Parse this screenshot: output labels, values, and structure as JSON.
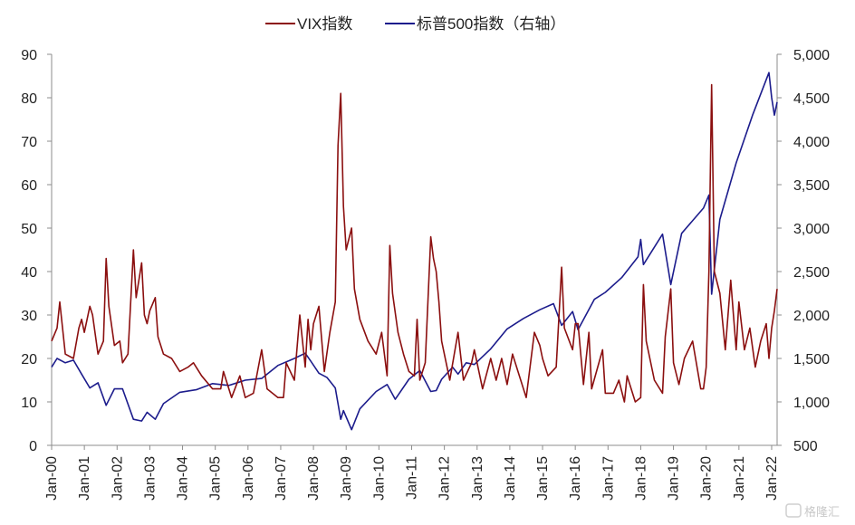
{
  "chart_data": {
    "type": "line",
    "title": "",
    "legend_position": "top-center",
    "grid": false,
    "y_left": {
      "min": 0,
      "max": 90,
      "ticks": [
        "0",
        "10",
        "20",
        "30",
        "40",
        "50",
        "60",
        "70",
        "80",
        "90"
      ]
    },
    "y_right": {
      "min": 500,
      "max": 5000,
      "ticks": [
        "500",
        "1,000",
        "1,500",
        "2,000",
        "2,500",
        "3,000",
        "3,500",
        "4,000",
        "4,500",
        "5,000"
      ]
    },
    "x": {
      "start": "2000-01",
      "end": "2022-03",
      "ticks": [
        "Jan-00",
        "Jan-01",
        "Jan-02",
        "Jan-03",
        "Jan-04",
        "Jan-05",
        "Jan-06",
        "Jan-07",
        "Jan-08",
        "Jan-09",
        "Jan-10",
        "Jan-11",
        "Jan-12",
        "Jan-13",
        "Jan-14",
        "Jan-15",
        "Jan-16",
        "Jan-17",
        "Jan-18",
        "Jan-19",
        "Jan-20",
        "Jan-21",
        "Jan-22"
      ]
    },
    "series": [
      {
        "name": "VIX指数",
        "axis": "left",
        "color": "#8b0f0f",
        "points": [
          [
            "2000-01",
            24
          ],
          [
            "2000-03",
            27
          ],
          [
            "2000-04",
            33
          ],
          [
            "2000-06",
            21
          ],
          [
            "2000-09",
            20
          ],
          [
            "2000-11",
            27
          ],
          [
            "2000-12",
            29
          ],
          [
            "2001-01",
            26
          ],
          [
            "2001-03",
            32
          ],
          [
            "2001-04",
            30
          ],
          [
            "2001-06",
            21
          ],
          [
            "2001-08",
            24
          ],
          [
            "2001-09",
            43
          ],
          [
            "2001-10",
            32
          ],
          [
            "2001-12",
            23
          ],
          [
            "2002-02",
            24
          ],
          [
            "2002-03",
            19
          ],
          [
            "2002-05",
            21
          ],
          [
            "2002-07",
            45
          ],
          [
            "2002-08",
            34
          ],
          [
            "2002-10",
            42
          ],
          [
            "2002-11",
            30
          ],
          [
            "2002-12",
            28
          ],
          [
            "2003-01",
            31
          ],
          [
            "2003-03",
            34
          ],
          [
            "2003-04",
            25
          ],
          [
            "2003-06",
            21
          ],
          [
            "2003-09",
            20
          ],
          [
            "2003-12",
            17
          ],
          [
            "2004-03",
            18
          ],
          [
            "2004-05",
            19
          ],
          [
            "2004-08",
            16
          ],
          [
            "2004-12",
            13
          ],
          [
            "2005-03",
            13
          ],
          [
            "2005-04",
            17
          ],
          [
            "2005-07",
            11
          ],
          [
            "2005-10",
            16
          ],
          [
            "2005-12",
            11
          ],
          [
            "2006-03",
            12
          ],
          [
            "2006-06",
            22
          ],
          [
            "2006-08",
            13
          ],
          [
            "2006-12",
            11
          ],
          [
            "2007-02",
            11
          ],
          [
            "2007-03",
            19
          ],
          [
            "2007-06",
            15
          ],
          [
            "2007-08",
            30
          ],
          [
            "2007-10",
            18
          ],
          [
            "2007-11",
            29
          ],
          [
            "2007-12",
            22
          ],
          [
            "2008-01",
            28
          ],
          [
            "2008-03",
            32
          ],
          [
            "2008-05",
            17
          ],
          [
            "2008-07",
            26
          ],
          [
            "2008-09",
            33
          ],
          [
            "2008-10",
            69
          ],
          [
            "2008-11",
            81
          ],
          [
            "2008-12",
            55
          ],
          [
            "2009-01",
            45
          ],
          [
            "2009-03",
            50
          ],
          [
            "2009-04",
            36
          ],
          [
            "2009-06",
            29
          ],
          [
            "2009-09",
            24
          ],
          [
            "2009-12",
            21
          ],
          [
            "2010-02",
            26
          ],
          [
            "2010-04",
            16
          ],
          [
            "2010-05",
            46
          ],
          [
            "2010-06",
            35
          ],
          [
            "2010-08",
            26
          ],
          [
            "2010-10",
            21
          ],
          [
            "2010-12",
            17
          ],
          [
            "2011-02",
            16
          ],
          [
            "2011-03",
            29
          ],
          [
            "2011-04",
            15
          ],
          [
            "2011-06",
            19
          ],
          [
            "2011-08",
            48
          ],
          [
            "2011-09",
            43
          ],
          [
            "2011-10",
            40
          ],
          [
            "2011-11",
            33
          ],
          [
            "2011-12",
            24
          ],
          [
            "2012-02",
            18
          ],
          [
            "2012-03",
            15
          ],
          [
            "2012-06",
            26
          ],
          [
            "2012-08",
            15
          ],
          [
            "2012-11",
            19
          ],
          [
            "2012-12",
            22
          ],
          [
            "2013-03",
            13
          ],
          [
            "2013-06",
            20
          ],
          [
            "2013-08",
            15
          ],
          [
            "2013-10",
            20
          ],
          [
            "2013-12",
            14
          ],
          [
            "2014-02",
            21
          ],
          [
            "2014-04",
            17
          ],
          [
            "2014-07",
            11
          ],
          [
            "2014-10",
            26
          ],
          [
            "2014-12",
            23
          ],
          [
            "2015-01",
            20
          ],
          [
            "2015-03",
            16
          ],
          [
            "2015-06",
            18
          ],
          [
            "2015-08",
            41
          ],
          [
            "2015-09",
            27
          ],
          [
            "2015-12",
            22
          ],
          [
            "2016-01",
            28
          ],
          [
            "2016-02",
            28
          ],
          [
            "2016-04",
            14
          ],
          [
            "2016-06",
            26
          ],
          [
            "2016-07",
            13
          ],
          [
            "2016-11",
            22
          ],
          [
            "2016-12",
            12
          ],
          [
            "2017-03",
            12
          ],
          [
            "2017-05",
            15
          ],
          [
            "2017-07",
            10
          ],
          [
            "2017-08",
            16
          ],
          [
            "2017-11",
            10
          ],
          [
            "2018-01",
            11
          ],
          [
            "2018-02",
            37
          ],
          [
            "2018-03",
            24
          ],
          [
            "2018-06",
            15
          ],
          [
            "2018-09",
            12
          ],
          [
            "2018-10",
            25
          ],
          [
            "2018-12",
            36
          ],
          [
            "2019-01",
            19
          ],
          [
            "2019-03",
            14
          ],
          [
            "2019-05",
            20
          ],
          [
            "2019-08",
            24
          ],
          [
            "2019-11",
            13
          ],
          [
            "2019-12",
            13
          ],
          [
            "2020-01",
            18
          ],
          [
            "2020-02",
            40
          ],
          [
            "2020-03",
            83
          ],
          [
            "2020-04",
            40
          ],
          [
            "2020-06",
            35
          ],
          [
            "2020-08",
            22
          ],
          [
            "2020-10",
            38
          ],
          [
            "2020-12",
            22
          ],
          [
            "2021-01",
            33
          ],
          [
            "2021-03",
            22
          ],
          [
            "2021-05",
            27
          ],
          [
            "2021-07",
            18
          ],
          [
            "2021-09",
            24
          ],
          [
            "2021-11",
            28
          ],
          [
            "2021-12",
            20
          ],
          [
            "2022-01",
            27
          ],
          [
            "2022-02",
            31
          ],
          [
            "2022-03",
            36
          ]
        ]
      },
      {
        "name": "标普500指数（右轴）",
        "axis": "right",
        "color": "#1c1c8c",
        "points": [
          [
            "2000-01",
            1400
          ],
          [
            "2000-03",
            1500
          ],
          [
            "2000-06",
            1450
          ],
          [
            "2000-09",
            1480
          ],
          [
            "2000-12",
            1320
          ],
          [
            "2001-03",
            1160
          ],
          [
            "2001-06",
            1220
          ],
          [
            "2001-09",
            960
          ],
          [
            "2001-12",
            1150
          ],
          [
            "2002-03",
            1150
          ],
          [
            "2002-07",
            800
          ],
          [
            "2002-10",
            780
          ],
          [
            "2002-12",
            880
          ],
          [
            "2003-03",
            800
          ],
          [
            "2003-06",
            980
          ],
          [
            "2003-12",
            1110
          ],
          [
            "2004-06",
            1140
          ],
          [
            "2004-12",
            1210
          ],
          [
            "2005-06",
            1190
          ],
          [
            "2005-12",
            1250
          ],
          [
            "2006-06",
            1270
          ],
          [
            "2006-12",
            1420
          ],
          [
            "2007-06",
            1500
          ],
          [
            "2007-10",
            1560
          ],
          [
            "2007-12",
            1470
          ],
          [
            "2008-03",
            1330
          ],
          [
            "2008-06",
            1280
          ],
          [
            "2008-09",
            1160
          ],
          [
            "2008-11",
            800
          ],
          [
            "2008-12",
            900
          ],
          [
            "2009-03",
            680
          ],
          [
            "2009-06",
            920
          ],
          [
            "2009-12",
            1120
          ],
          [
            "2010-04",
            1200
          ],
          [
            "2010-07",
            1030
          ],
          [
            "2010-12",
            1260
          ],
          [
            "2011-04",
            1360
          ],
          [
            "2011-08",
            1120
          ],
          [
            "2011-10",
            1130
          ],
          [
            "2011-12",
            1260
          ],
          [
            "2012-04",
            1400
          ],
          [
            "2012-06",
            1320
          ],
          [
            "2012-09",
            1450
          ],
          [
            "2012-12",
            1430
          ],
          [
            "2013-06",
            1610
          ],
          [
            "2013-12",
            1840
          ],
          [
            "2014-06",
            1960
          ],
          [
            "2014-12",
            2060
          ],
          [
            "2015-05",
            2130
          ],
          [
            "2015-08",
            1880
          ],
          [
            "2015-12",
            2040
          ],
          [
            "2016-02",
            1830
          ],
          [
            "2016-08",
            2180
          ],
          [
            "2016-12",
            2260
          ],
          [
            "2017-06",
            2430
          ],
          [
            "2017-12",
            2670
          ],
          [
            "2018-01",
            2870
          ],
          [
            "2018-02",
            2580
          ],
          [
            "2018-09",
            2930
          ],
          [
            "2018-12",
            2350
          ],
          [
            "2019-04",
            2940
          ],
          [
            "2019-12",
            3230
          ],
          [
            "2020-02",
            3380
          ],
          [
            "2020-03",
            2240
          ],
          [
            "2020-06",
            3100
          ],
          [
            "2020-12",
            3750
          ],
          [
            "2021-06",
            4300
          ],
          [
            "2021-12",
            4790
          ],
          [
            "2022-01",
            4500
          ],
          [
            "2022-02",
            4300
          ],
          [
            "2022-03",
            4450
          ]
        ]
      }
    ]
  },
  "watermark": {
    "text": "格隆汇"
  }
}
